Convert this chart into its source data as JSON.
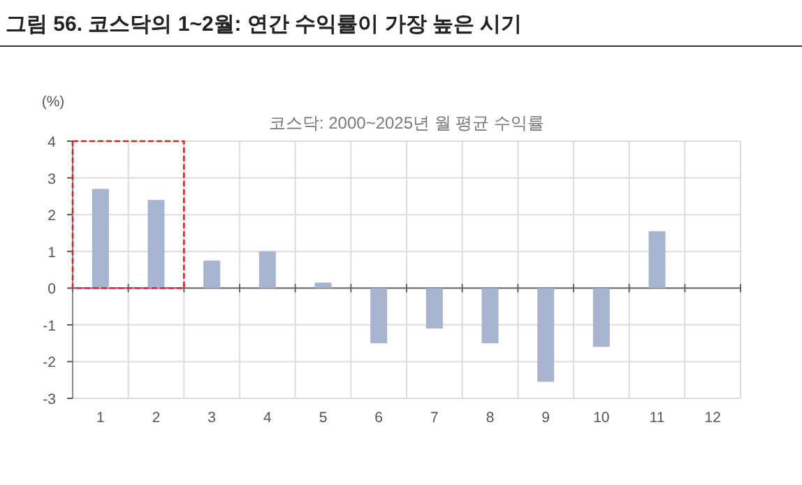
{
  "chart_data": {
    "type": "bar",
    "title": "그림 56. 코스닥의 1~2월: 연간 수익률이 가장 높은 시기",
    "subtitle": "코스닥: 2000~2025년 월 평균 수익률",
    "ylabel": "(%)",
    "categories": [
      "1",
      "2",
      "3",
      "4",
      "5",
      "6",
      "7",
      "8",
      "9",
      "10",
      "11",
      "12"
    ],
    "series": [
      {
        "color": "#a6b4cf",
        "values": [
          2.7,
          2.4,
          0.75,
          1.0,
          0.15,
          -1.5,
          -1.1,
          -1.5,
          -2.55,
          -1.6,
          1.55,
          null
        ]
      }
    ],
    "ylim": [
      -3,
      4
    ],
    "yticks": [
      -3,
      -2,
      -1,
      0,
      1,
      2,
      3,
      4
    ],
    "grid": true
  }
}
